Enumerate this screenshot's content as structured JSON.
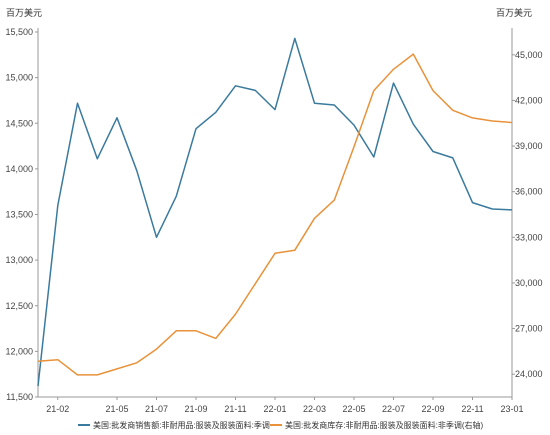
{
  "chart_data": {
    "type": "line",
    "title": "",
    "left_unit": "百万美元",
    "right_unit": "百万美元",
    "x": [
      "21-01",
      "21-02",
      "21-03",
      "21-04",
      "21-05",
      "21-06",
      "21-07",
      "21-08",
      "21-09",
      "21-10",
      "21-11",
      "21-12",
      "22-01",
      "22-02",
      "22-03",
      "22-04",
      "22-05",
      "22-06",
      "22-07",
      "22-08",
      "22-09",
      "22-10",
      "22-11",
      "22-12",
      "23-01"
    ],
    "x_tick_labels": [
      "21-02",
      "21-05",
      "21-07",
      "21-09",
      "21-11",
      "22-01",
      "22-03",
      "22-05",
      "22-07",
      "22-09",
      "22-11",
      "23-01"
    ],
    "left_axis": {
      "min": 11500,
      "max": 15500,
      "ticks": [
        "11,500",
        "12,000",
        "12,500",
        "13,000",
        "13,500",
        "14,000",
        "14,500",
        "15,000",
        "15,500"
      ]
    },
    "right_axis": {
      "min": 22500,
      "max": 46500,
      "ticks": [
        "24,000",
        "27,000",
        "30,000",
        "33,000",
        "36,000",
        "39,000",
        "42,000",
        "45,000"
      ]
    },
    "series": [
      {
        "name": "美国:批发商销售额:非耐用品:服装及服装面料:季调",
        "axis": "left",
        "color": "#3a7a9e",
        "values": [
          11620,
          13600,
          14720,
          14110,
          14560,
          13980,
          13250,
          13700,
          14440,
          14620,
          14910,
          14860,
          14650,
          15430,
          14720,
          14700,
          14480,
          14130,
          14940,
          14490,
          14190,
          14120,
          13630,
          13560,
          13550
        ]
      },
      {
        "name": "美国:批发商库存:非耐用品:服装及服装面料:非季调(右轴)",
        "axis": "right",
        "color": "#e8923a",
        "values": [
          24850,
          24950,
          23950,
          23950,
          24350,
          24750,
          25650,
          26850,
          26850,
          26350,
          27950,
          29950,
          31950,
          32150,
          34250,
          35450,
          38950,
          42650,
          44050,
          45050,
          42650,
          41350,
          40850,
          40650,
          40550
        ]
      }
    ],
    "legend_position": "bottom",
    "grid": false
  }
}
